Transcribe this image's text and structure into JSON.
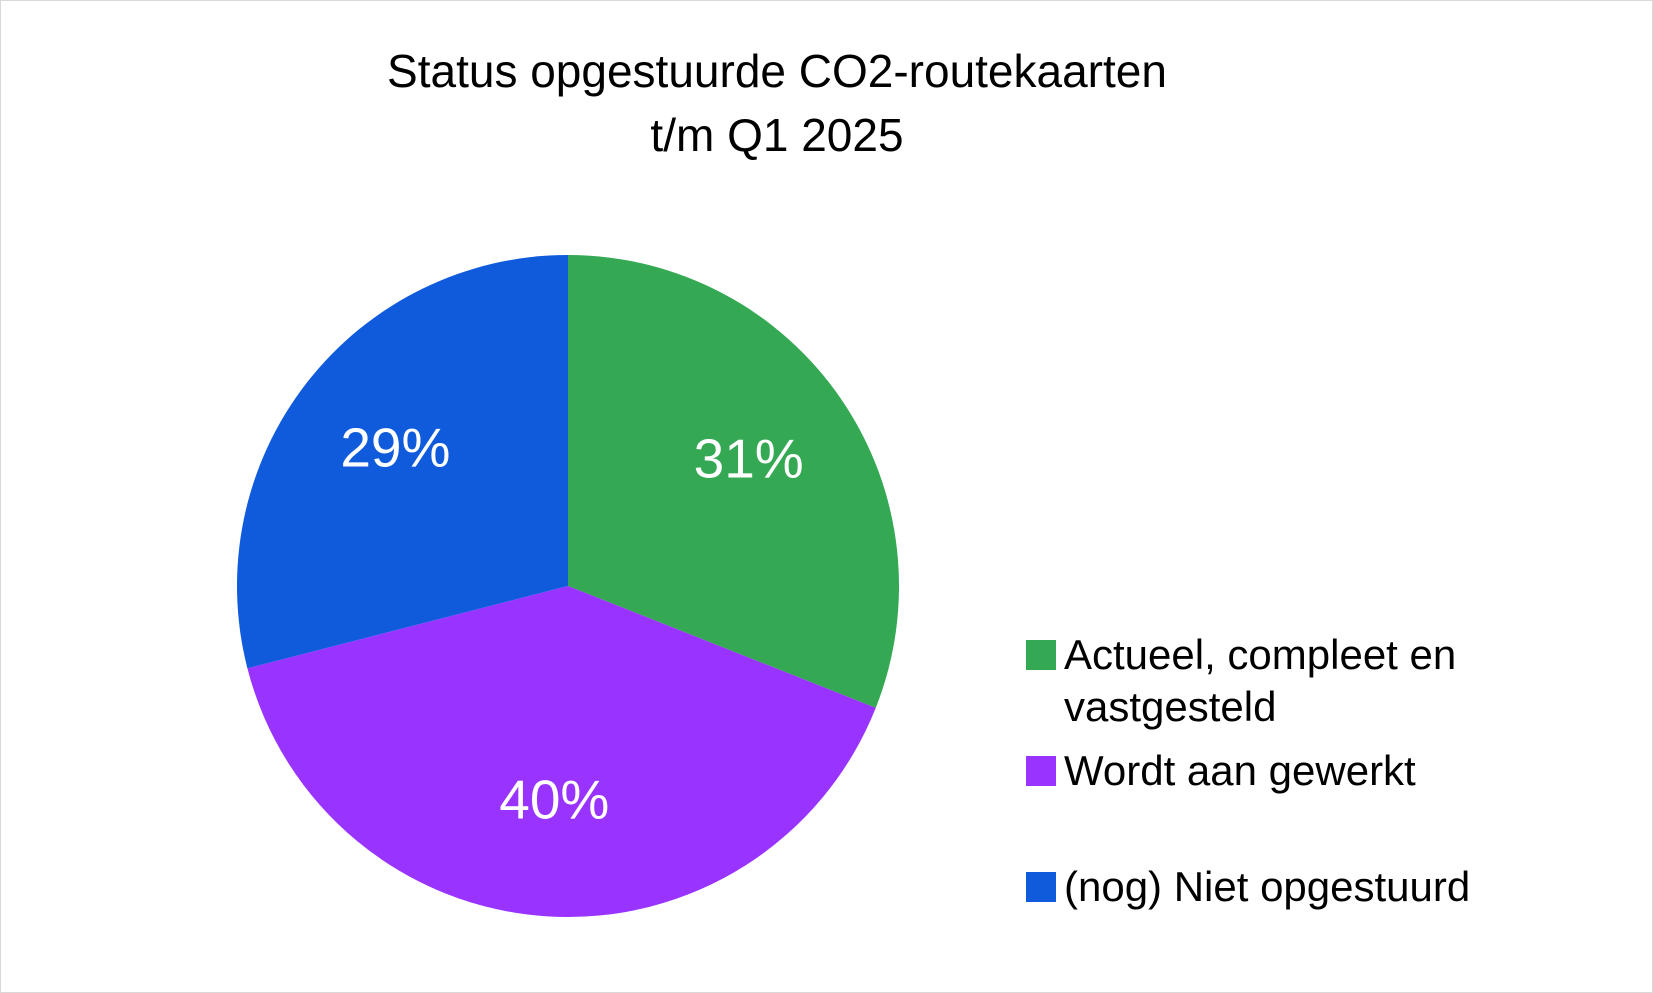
{
  "chart_data": {
    "type": "pie",
    "title": [
      "Status opgestuurde CO2-routekaarten",
      "t/m Q1 2025"
    ],
    "categories": [
      "Actueel, compleet en vastgesteld",
      "Wordt aan gewerkt",
      "(nog) Niet opgestuurd"
    ],
    "values": [
      31,
      40,
      29
    ],
    "value_labels": [
      "31%",
      "40%",
      "29%"
    ],
    "colors": [
      "#34a853",
      "#9933ff",
      "#0f5bdc"
    ],
    "legend": "right"
  }
}
